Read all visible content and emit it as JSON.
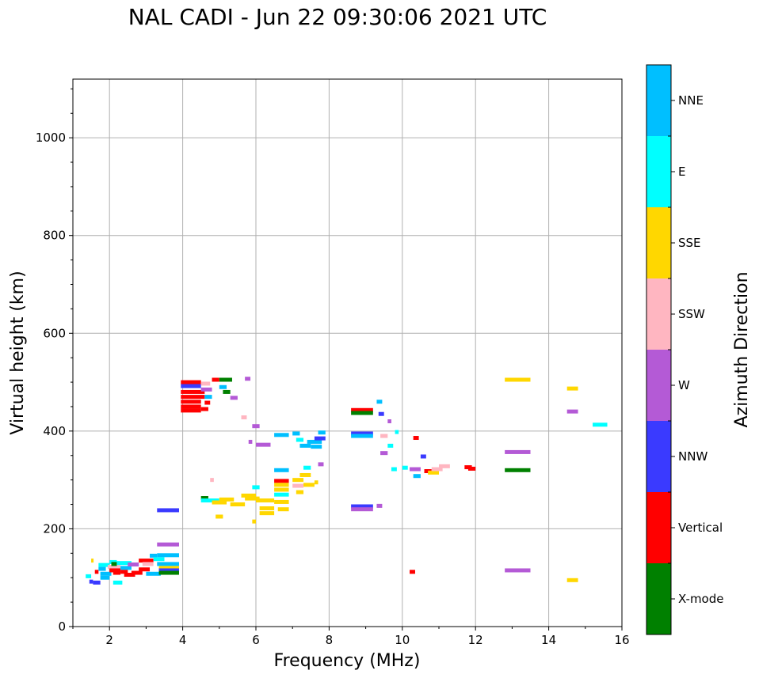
{
  "chart_data": {
    "type": "scatter",
    "title": "NAL CADI - Jun 22 09:30:06 2021 UTC",
    "xlabel": "Frequency (MHz)",
    "ylabel": "Virtual height (km)",
    "xlim": [
      1,
      16
    ],
    "ylim": [
      0,
      1120
    ],
    "xticks": [
      2,
      4,
      6,
      8,
      10,
      12,
      14,
      16
    ],
    "yticks": [
      0,
      200,
      400,
      600,
      800,
      1000
    ],
    "grid": true,
    "colorbar": {
      "label": "Azimuth Direction",
      "categories": [
        {
          "name": "X-mode",
          "color": "#008000"
        },
        {
          "name": "Vertical",
          "color": "#ff0000"
        },
        {
          "name": "NNW",
          "color": "#3a3aff"
        },
        {
          "name": "W",
          "color": "#b45ad6"
        },
        {
          "name": "SSW",
          "color": "#ffb6c1"
        },
        {
          "name": "SSE",
          "color": "#ffd700"
        },
        {
          "name": "E",
          "color": "#00ffff"
        },
        {
          "name": "NNE",
          "color": "#00bfff"
        }
      ]
    },
    "series_note": "Each echo: [freq_start MHz, freq_end MHz, virtual height km, azimuth category]",
    "echoes": [
      [
        1.35,
        1.5,
        103,
        "E"
      ],
      [
        1.45,
        1.55,
        92,
        "NNW"
      ],
      [
        1.5,
        1.55,
        135,
        "SSE"
      ],
      [
        1.55,
        1.75,
        90,
        "NNW"
      ],
      [
        1.6,
        1.7,
        112,
        "Vertical"
      ],
      [
        1.7,
        2.0,
        126,
        "E"
      ],
      [
        1.7,
        1.9,
        118,
        "NNE"
      ],
      [
        1.75,
        2.05,
        108,
        "NNE"
      ],
      [
        1.75,
        2.0,
        100,
        "NNE"
      ],
      [
        1.95,
        2.3,
        122,
        "SSW"
      ],
      [
        2.0,
        2.2,
        132,
        "E"
      ],
      [
        2.0,
        2.3,
        115,
        "Vertical"
      ],
      [
        2.05,
        2.2,
        128,
        "X-mode"
      ],
      [
        2.1,
        2.35,
        90,
        "E"
      ],
      [
        2.1,
        2.3,
        110,
        "Vertical"
      ],
      [
        2.2,
        2.6,
        130,
        "E"
      ],
      [
        2.3,
        2.6,
        120,
        "NNE"
      ],
      [
        2.3,
        2.5,
        112,
        "Vertical"
      ],
      [
        2.4,
        2.7,
        106,
        "Vertical"
      ],
      [
        2.5,
        2.8,
        127,
        "W"
      ],
      [
        2.6,
        2.9,
        110,
        "Vertical"
      ],
      [
        2.8,
        3.2,
        135,
        "Vertical"
      ],
      [
        2.8,
        3.1,
        117,
        "Vertical"
      ],
      [
        2.9,
        3.2,
        128,
        "SSW"
      ],
      [
        3.0,
        3.4,
        108,
        "NNE"
      ],
      [
        3.1,
        3.3,
        145,
        "NNE"
      ],
      [
        3.2,
        3.5,
        138,
        "E"
      ],
      [
        3.3,
        3.9,
        146,
        "NNE"
      ],
      [
        3.3,
        3.9,
        128,
        "NNE"
      ],
      [
        3.35,
        3.9,
        120,
        "SSE"
      ],
      [
        3.35,
        3.9,
        115,
        "NNW"
      ],
      [
        3.35,
        3.9,
        110,
        "X-mode"
      ],
      [
        3.3,
        3.9,
        238,
        "NNW"
      ],
      [
        3.3,
        3.9,
        168,
        "W"
      ],
      [
        3.95,
        4.5,
        500,
        "Vertical"
      ],
      [
        3.95,
        4.5,
        492,
        "NNW"
      ],
      [
        3.95,
        4.6,
        480,
        "Vertical"
      ],
      [
        3.95,
        4.6,
        470,
        "Vertical"
      ],
      [
        3.95,
        4.5,
        460,
        "Vertical"
      ],
      [
        3.95,
        4.5,
        450,
        "Vertical"
      ],
      [
        3.95,
        4.5,
        442,
        "Vertical"
      ],
      [
        4.5,
        4.75,
        497,
        "SSW"
      ],
      [
        4.5,
        4.8,
        485,
        "W"
      ],
      [
        4.6,
        4.8,
        470,
        "NNE"
      ],
      [
        4.6,
        4.75,
        458,
        "Vertical"
      ],
      [
        4.5,
        4.7,
        445,
        "Vertical"
      ],
      [
        4.8,
        5.0,
        505,
        "Vertical"
      ],
      [
        5.0,
        5.35,
        505,
        "X-mode"
      ],
      [
        5.0,
        5.2,
        490,
        "NNE"
      ],
      [
        5.1,
        5.3,
        480,
        "X-mode"
      ],
      [
        5.3,
        5.5,
        468,
        "W"
      ],
      [
        5.7,
        5.85,
        507,
        "W"
      ],
      [
        5.6,
        5.75,
        428,
        "SSW"
      ],
      [
        5.9,
        6.1,
        410,
        "W"
      ],
      [
        6.0,
        6.4,
        372,
        "W"
      ],
      [
        5.8,
        5.9,
        378,
        "W"
      ],
      [
        6.5,
        6.9,
        392,
        "NNE"
      ],
      [
        6.5,
        6.9,
        320,
        "NNE"
      ],
      [
        7.0,
        7.2,
        395,
        "NNE"
      ],
      [
        7.1,
        7.3,
        382,
        "E"
      ],
      [
        7.2,
        7.5,
        370,
        "NNE"
      ],
      [
        7.4,
        7.8,
        378,
        "NNE"
      ],
      [
        7.5,
        7.8,
        368,
        "NNE"
      ],
      [
        7.6,
        7.9,
        385,
        "NNW"
      ],
      [
        7.7,
        7.9,
        397,
        "NNE"
      ],
      [
        7.7,
        7.85,
        332,
        "W"
      ],
      [
        4.5,
        4.7,
        263,
        "X-mode"
      ],
      [
        4.5,
        5.0,
        258,
        "E"
      ],
      [
        4.75,
        4.85,
        300,
        "SSW"
      ],
      [
        4.8,
        5.2,
        254,
        "SSE"
      ],
      [
        5.0,
        5.4,
        260,
        "SSE"
      ],
      [
        5.3,
        5.7,
        250,
        "SSE"
      ],
      [
        5.6,
        6.0,
        268,
        "SSE"
      ],
      [
        5.7,
        6.1,
        262,
        "SSE"
      ],
      [
        5.9,
        6.1,
        285,
        "E"
      ],
      [
        6.0,
        6.5,
        258,
        "SSE"
      ],
      [
        6.1,
        6.5,
        242,
        "SSE"
      ],
      [
        6.1,
        6.5,
        232,
        "SSE"
      ],
      [
        6.5,
        6.9,
        298,
        "Vertical"
      ],
      [
        6.5,
        6.9,
        290,
        "SSE"
      ],
      [
        6.5,
        6.9,
        280,
        "SSE"
      ],
      [
        6.5,
        6.9,
        270,
        "E"
      ],
      [
        6.5,
        6.9,
        255,
        "SSE"
      ],
      [
        6.6,
        6.9,
        240,
        "SSE"
      ],
      [
        7.0,
        7.3,
        300,
        "SSE"
      ],
      [
        7.0,
        7.3,
        288,
        "SSW"
      ],
      [
        7.1,
        7.3,
        275,
        "SSE"
      ],
      [
        7.2,
        7.5,
        310,
        "SSE"
      ],
      [
        7.3,
        7.5,
        325,
        "E"
      ],
      [
        7.3,
        7.6,
        290,
        "SSE"
      ],
      [
        7.6,
        7.7,
        295,
        "SSE"
      ],
      [
        4.9,
        5.1,
        225,
        "SSE"
      ],
      [
        5.9,
        6.0,
        215,
        "SSE"
      ],
      [
        8.6,
        9.2,
        443,
        "Vertical"
      ],
      [
        8.6,
        9.2,
        437,
        "X-mode"
      ],
      [
        8.6,
        9.2,
        395,
        "NNW"
      ],
      [
        8.6,
        9.2,
        390,
        "NNE"
      ],
      [
        8.6,
        9.2,
        246,
        "NNW"
      ],
      [
        8.6,
        9.2,
        240,
        "W"
      ],
      [
        9.3,
        9.45,
        460,
        "NNE"
      ],
      [
        9.35,
        9.5,
        435,
        "NNW"
      ],
      [
        9.6,
        9.7,
        420,
        "W"
      ],
      [
        9.4,
        9.6,
        390,
        "SSW"
      ],
      [
        9.8,
        9.9,
        398,
        "E"
      ],
      [
        9.4,
        9.6,
        355,
        "W"
      ],
      [
        9.6,
        9.75,
        370,
        "E"
      ],
      [
        9.7,
        9.85,
        322,
        "E"
      ],
      [
        9.3,
        9.45,
        247,
        "W"
      ],
      [
        10.0,
        10.15,
        325,
        "E"
      ],
      [
        10.2,
        10.5,
        322,
        "W"
      ],
      [
        10.3,
        10.5,
        308,
        "NNE"
      ],
      [
        10.6,
        10.8,
        318,
        "Vertical"
      ],
      [
        10.7,
        11.0,
        315,
        "SSE"
      ],
      [
        10.8,
        11.1,
        322,
        "SSW"
      ],
      [
        11.0,
        11.3,
        328,
        "SSW"
      ],
      [
        11.7,
        11.9,
        326,
        "Vertical"
      ],
      [
        11.8,
        12.0,
        323,
        "Vertical"
      ],
      [
        10.3,
        10.45,
        386,
        "Vertical"
      ],
      [
        10.5,
        10.65,
        348,
        "NNW"
      ],
      [
        10.2,
        10.35,
        112,
        "Vertical"
      ],
      [
        12.8,
        13.5,
        505,
        "SSE"
      ],
      [
        12.8,
        13.5,
        357,
        "W"
      ],
      [
        12.8,
        13.5,
        320,
        "X-mode"
      ],
      [
        12.8,
        13.5,
        115,
        "W"
      ],
      [
        14.5,
        14.8,
        487,
        "SSE"
      ],
      [
        14.5,
        14.8,
        440,
        "W"
      ],
      [
        14.5,
        14.8,
        95,
        "SSE"
      ],
      [
        15.2,
        15.6,
        413,
        "E"
      ]
    ]
  }
}
